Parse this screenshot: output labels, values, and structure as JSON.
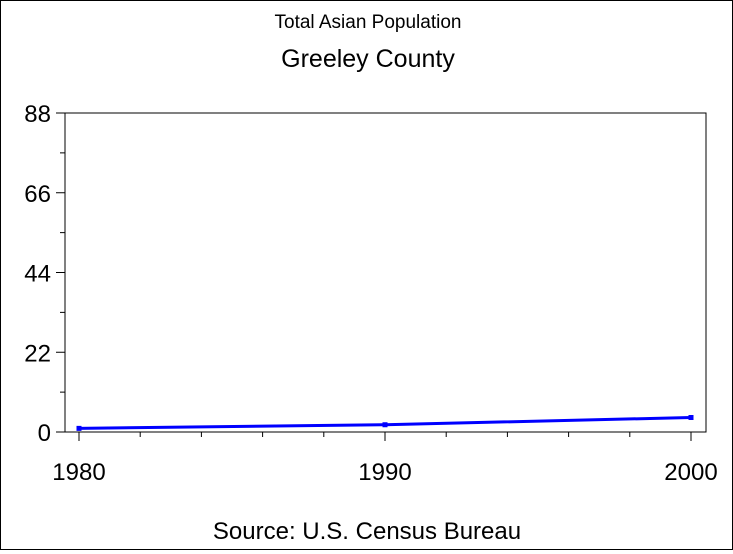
{
  "chart_data": {
    "type": "line",
    "title": "Total Asian Population",
    "subtitle": "Greeley County",
    "source": "Source: U.S. Census Bureau",
    "x": [
      1980,
      1990,
      2000
    ],
    "series": [
      {
        "values": [
          1,
          2,
          4
        ]
      }
    ],
    "xlim": [
      1980,
      2000
    ],
    "ylim": [
      0,
      88
    ],
    "xticks": [
      "1980",
      "1990",
      "2000"
    ],
    "yticks": [
      "0",
      "22",
      "44",
      "66",
      "88"
    ],
    "grid": false,
    "colors": {
      "line": "#0000ff",
      "axis": "#000000",
      "text": "#000000"
    }
  }
}
